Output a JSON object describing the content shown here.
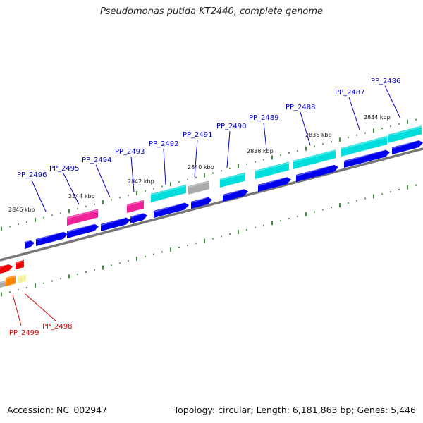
{
  "title": "Pseudomonas putida KT2440, complete genome",
  "footer": {
    "accession": "Accession: NC_002947",
    "summary": "Topology: circular; Length: 6,181,863 bp; Genes: 5,446"
  },
  "colors": {
    "label_blue": "#0000cc",
    "label_red": "#dd0000",
    "tick_green": "#117711",
    "backbone": "#777777",
    "gene_blue": "#0000ee",
    "gene_cyan": "#00dddd",
    "gene_magenta": "#ee2299",
    "gene_gray": "#aaaaaa",
    "gene_red": "#ee0000",
    "gene_orange": "#ff8800",
    "gene_yellow": "#f5f0a0"
  },
  "kbp_labels": [
    "2846 kbp",
    "2844 kbp",
    "2842 kbp",
    "2840 kbp",
    "2838 kbp",
    "2836 kbp",
    "2834 kbp"
  ],
  "gene_labels": [
    {
      "text": "PP_2496",
      "color": "blue"
    },
    {
      "text": "PP_2495",
      "color": "blue"
    },
    {
      "text": "PP_2494",
      "color": "blue"
    },
    {
      "text": "PP_2493",
      "color": "blue"
    },
    {
      "text": "PP_2492",
      "color": "blue"
    },
    {
      "text": "PP_2491",
      "color": "blue"
    },
    {
      "text": "PP_2490",
      "color": "blue"
    },
    {
      "text": "PP_2489",
      "color": "blue"
    },
    {
      "text": "PP_2488",
      "color": "blue"
    },
    {
      "text": "PP_2487",
      "color": "blue"
    },
    {
      "text": "PP_2486",
      "color": "blue"
    },
    {
      "text": "PP_2499",
      "color": "red"
    },
    {
      "text": "PP_2498",
      "color": "red"
    }
  ]
}
